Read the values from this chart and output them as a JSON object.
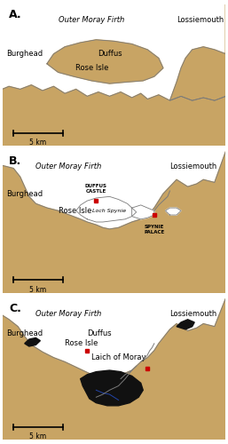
{
  "land_color": "#C8A464",
  "water_color": "#FFFFFF",
  "outline_color": "#7a7a7a",
  "dark_color": "#111111",
  "dark_blue": "#1a2a3a",
  "red_marker_color": "#CC0000",
  "panel_labels": [
    "A.",
    "B.",
    "C."
  ],
  "scale_bar_km": "5 km",
  "outer_moray_text": "Outer Moray Firth",
  "lossiemouth_text": "Lossiemouth",
  "burghead_text": "Burghead"
}
